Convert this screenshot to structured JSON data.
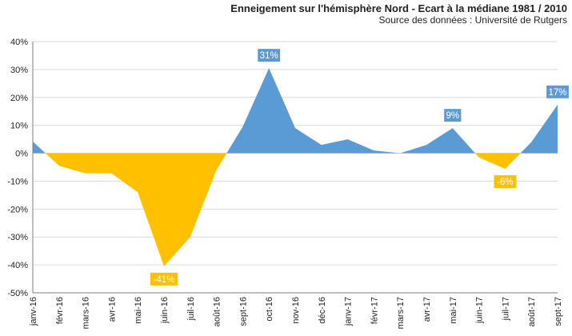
{
  "chart_data": {
    "type": "area",
    "title": "Enneigement sur l'hémisphère Nord - Ecart à la médiane 1981 / 2010",
    "subtitle": "Source des données : Université de Rutgers",
    "categories": [
      "janv-16",
      "févr-16",
      "mars-16",
      "avr-16",
      "mai-16",
      "juin-16",
      "juil-16",
      "août-16",
      "sept-16",
      "oct-16",
      "nov-16",
      "déc-16",
      "janv-17",
      "févr-17",
      "mars-17",
      "avr-17",
      "mai-17",
      "juin-17",
      "juil-17",
      "août-17",
      "sept-17"
    ],
    "values": [
      4.2,
      -4.5,
      -7.2,
      -7.2,
      -14,
      -40.5,
      -30,
      -6,
      9.5,
      30.5,
      9,
      3,
      5,
      1,
      0,
      3,
      9,
      -1.5,
      -5.6,
      4,
      17.4
    ],
    "ylim": [
      -50,
      40
    ],
    "yticks": [
      "-50%",
      "-40%",
      "-30%",
      "-20%",
      "-10%",
      "0%",
      "10%",
      "20%",
      "30%",
      "40%"
    ],
    "grid": true,
    "colors": {
      "positive": "#5b9bd5",
      "negative": "#ffc000",
      "grid": "#d9d9d9",
      "axis": "#7f7f7f"
    },
    "annotations": [
      {
        "index": 5,
        "text": "-41%",
        "color": "#ffc000",
        "position": "below"
      },
      {
        "index": 9,
        "text": "31%",
        "color": "#5b9bd5",
        "position": "above"
      },
      {
        "index": 16,
        "text": "9%",
        "color": "#5b9bd5",
        "position": "above"
      },
      {
        "index": 18,
        "text": "-6%",
        "color": "#ffc000",
        "position": "below"
      },
      {
        "index": 20,
        "text": "17%",
        "color": "#5b9bd5",
        "position": "above"
      }
    ]
  }
}
